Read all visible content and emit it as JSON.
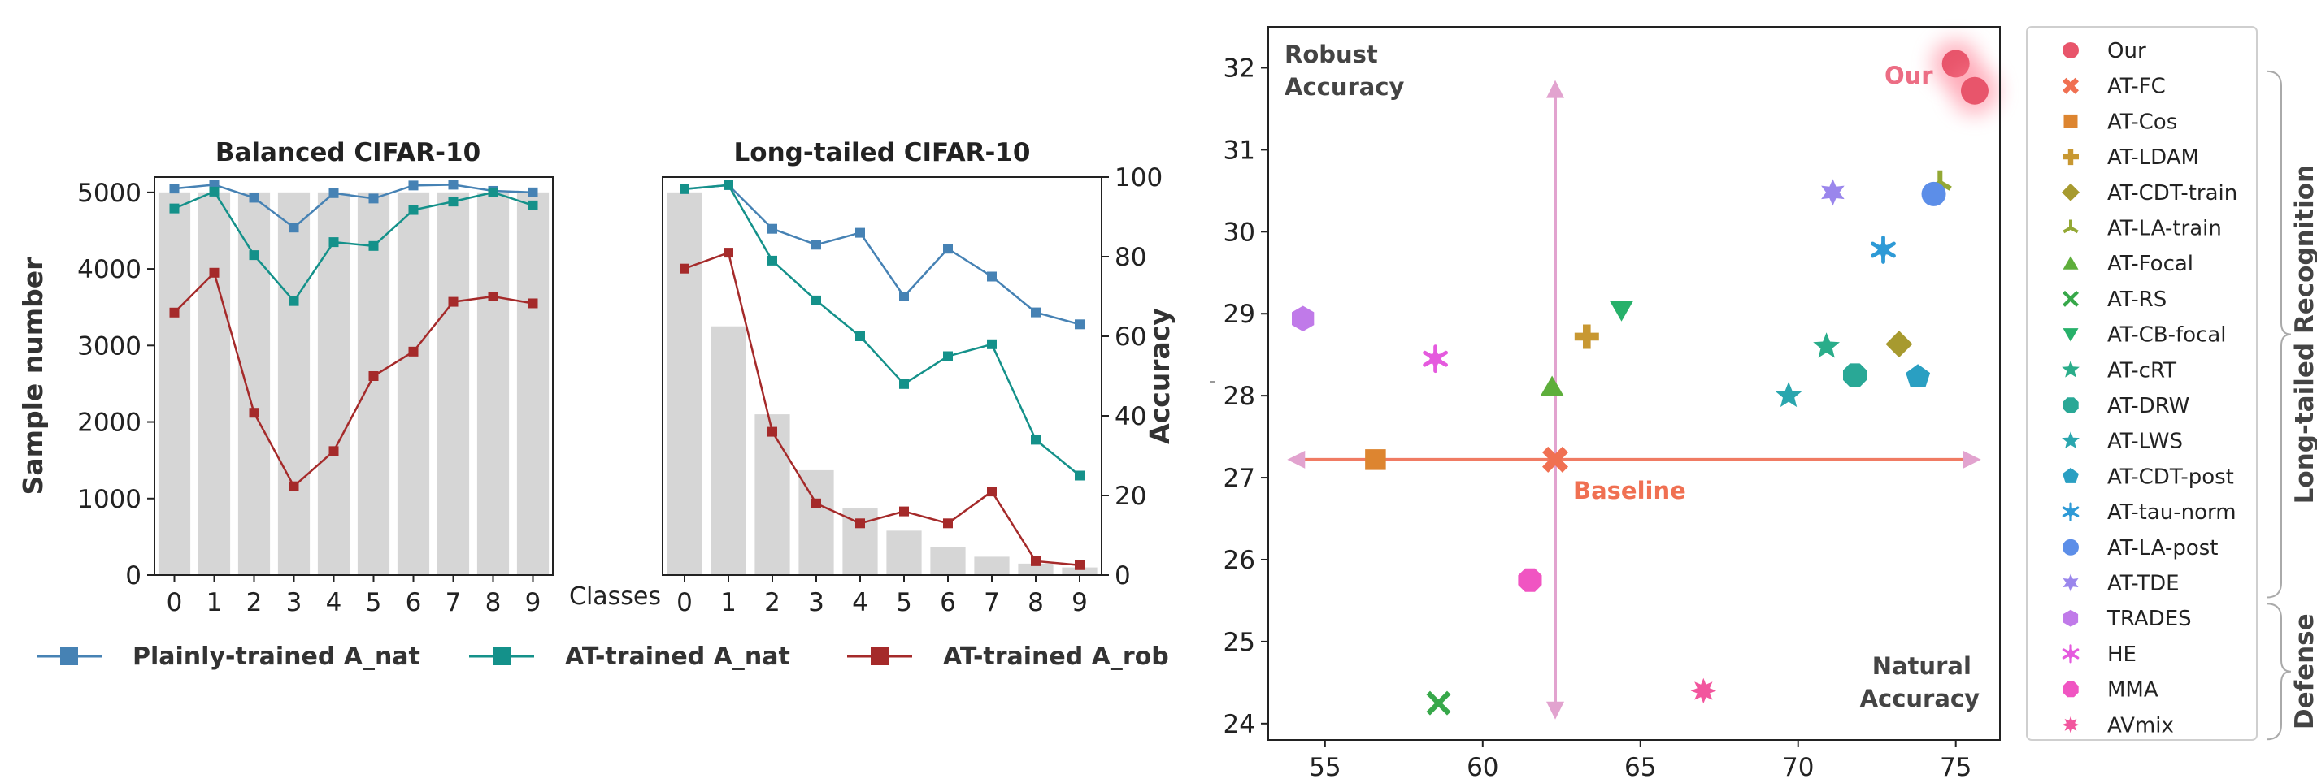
{
  "chart_data": [
    {
      "type": "bar+line",
      "title": "Balanced CIFAR-10",
      "xlabel": "Classes",
      "ylabel": "Sample number",
      "categories": [
        "0",
        "1",
        "2",
        "3",
        "4",
        "5",
        "6",
        "7",
        "8",
        "9"
      ],
      "ylim": [
        0,
        5200
      ],
      "yticks": [
        0,
        1000,
        2000,
        3000,
        4000,
        5000
      ],
      "bars": [
        5000,
        5000,
        5000,
        5000,
        5000,
        5000,
        5000,
        5000,
        5000,
        5000
      ],
      "series": [
        {
          "name": "Plainly-trained  A_nat",
          "color": "#4682b4",
          "values": [
            5050,
            5100,
            4930,
            4540,
            4990,
            4920,
            5090,
            5100,
            5020,
            5000
          ]
        },
        {
          "name": "AT-trained  A_nat",
          "color": "#14918a",
          "values": [
            4790,
            5010,
            4180,
            3580,
            4350,
            4300,
            4770,
            4880,
            5000,
            4830
          ]
        },
        {
          "name": "AT-trained  A_rob",
          "color": "#a52a2a",
          "values": [
            3430,
            3950,
            2120,
            1160,
            1620,
            2600,
            2920,
            3570,
            3640,
            3550
          ]
        }
      ]
    },
    {
      "type": "bar+line",
      "title": "Long-tailed CIFAR-10",
      "xlabel": "",
      "ylabel": "Accuracy",
      "categories": [
        "0",
        "1",
        "2",
        "3",
        "4",
        "5",
        "6",
        "7",
        "8",
        "9"
      ],
      "ylim": [
        0,
        100
      ],
      "yticks": [
        0,
        20,
        40,
        60,
        80,
        100
      ],
      "bars_sample_number": [
        5000,
        3250,
        2100,
        1370,
        880,
        580,
        370,
        240,
        150,
        100
      ],
      "series": [
        {
          "name": "Plainly-trained  A_nat",
          "color": "#4682b4",
          "values": [
            97,
            98,
            87,
            83,
            86,
            70,
            82,
            75,
            66,
            63
          ]
        },
        {
          "name": "AT-trained  A_nat",
          "color": "#14918a",
          "values": [
            97,
            98,
            79,
            69,
            60,
            48,
            55,
            58,
            34,
            25
          ]
        },
        {
          "name": "AT-trained  A_rob",
          "color": "#a52a2a",
          "values": [
            77,
            81,
            36,
            18,
            13,
            16,
            13,
            21,
            3.5,
            2.5
          ]
        }
      ]
    },
    {
      "type": "scatter",
      "xlabel": "Natural Accuracy",
      "ylabel": "Robust Accuracy",
      "xlim": [
        53.2,
        76.4
      ],
      "ylim": [
        23.8,
        32.5
      ],
      "xticks": [
        55,
        60,
        65,
        70,
        75
      ],
      "yticks": [
        24,
        25,
        26,
        27,
        28,
        29,
        30,
        31,
        32
      ],
      "annotations": {
        "corner_y": "Robust\nAccuracy",
        "corner_x": "Natural\nAccuracy",
        "baseline": "Baseline",
        "ours": "Our"
      },
      "baseline_point": [
        62.3,
        27.22
      ],
      "points": [
        {
          "name": "Our",
          "marker": "circle",
          "color": "#e8556b",
          "coords": [
            [
              75.0,
              32.05
            ],
            [
              75.6,
              31.72
            ]
          ]
        },
        {
          "name": "AT-FC",
          "marker": "x",
          "color": "#f07052",
          "coords": [
            [
              62.3,
              27.22
            ]
          ]
        },
        {
          "name": "AT-Cos",
          "marker": "square",
          "color": "#dd8530",
          "coords": [
            [
              56.6,
              27.22
            ]
          ]
        },
        {
          "name": "AT-LDAM",
          "marker": "plus",
          "color": "#c89832",
          "coords": [
            [
              63.3,
              28.72
            ]
          ]
        },
        {
          "name": "AT-CDT-train",
          "marker": "diamond",
          "color": "#a79a2f",
          "coords": [
            [
              73.2,
              28.63
            ]
          ]
        },
        {
          "name": "AT-LA-train",
          "marker": "tri",
          "color": "#93a834",
          "coords": [
            [
              74.5,
              30.6
            ]
          ]
        },
        {
          "name": "AT-Focal",
          "marker": "triangle-up",
          "color": "#5eae3b",
          "coords": [
            [
              62.2,
              28.1
            ]
          ]
        },
        {
          "name": "AT-RS",
          "marker": "x-thin",
          "color": "#37a84a",
          "coords": [
            [
              58.6,
              24.25
            ]
          ]
        },
        {
          "name": "AT-CB-focal",
          "marker": "triangle-down",
          "color": "#27b16a",
          "coords": [
            [
              64.4,
              29.05
            ]
          ]
        },
        {
          "name": "AT-cRT",
          "marker": "star",
          "color": "#2aad8a",
          "coords": [
            [
              70.9,
              28.6
            ]
          ]
        },
        {
          "name": "AT-DRW",
          "marker": "octagon",
          "color": "#29a896",
          "coords": [
            [
              71.8,
              28.25
            ]
          ]
        },
        {
          "name": "AT-LWS",
          "marker": "star",
          "color": "#2aa6ae",
          "coords": [
            [
              69.7,
              28.0
            ]
          ]
        },
        {
          "name": "AT-CDT-post",
          "marker": "pentagon",
          "color": "#2a9fc2",
          "coords": [
            [
              73.8,
              28.23
            ]
          ]
        },
        {
          "name": "AT-tau-norm",
          "marker": "asterisk",
          "color": "#2e9ad6",
          "coords": [
            [
              72.7,
              29.78
            ]
          ]
        },
        {
          "name": "AT-LA-post",
          "marker": "circle",
          "color": "#5c8ee8",
          "coords": [
            [
              74.3,
              30.46
            ]
          ]
        },
        {
          "name": "AT-TDE",
          "marker": "star6",
          "color": "#9a86ec",
          "coords": [
            [
              71.1,
              30.48
            ]
          ]
        },
        {
          "name": "TRADES",
          "marker": "hexagon",
          "color": "#c07ae9",
          "coords": [
            [
              54.3,
              28.94
            ]
          ]
        },
        {
          "name": "HE",
          "marker": "asterisk",
          "color": "#e55ade",
          "coords": [
            [
              58.5,
              28.45
            ]
          ]
        },
        {
          "name": "MMA",
          "marker": "octagon",
          "color": "#f055c2",
          "coords": [
            [
              61.5,
              25.75
            ]
          ]
        },
        {
          "name": "AVmix",
          "marker": "star8",
          "color": "#f2569e",
          "coords": [
            [
              67.0,
              24.4
            ]
          ]
        }
      ],
      "legend_groups": [
        {
          "label": "Long-tailed Recognition",
          "from": "AT-FC",
          "to": "AT-TDE"
        },
        {
          "label": "Defense",
          "from": "TRADES",
          "to": "AVmix"
        }
      ]
    }
  ]
}
